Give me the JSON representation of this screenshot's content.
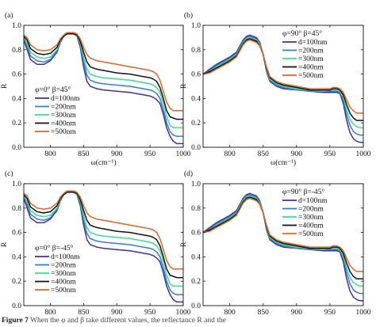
{
  "chart_data": [
    {
      "type": "line",
      "panel_label": "(a)",
      "legend_title": "φ=0° β=45°",
      "legend_placement": "bottom-left",
      "xlabel": "ω(cm⁻¹)",
      "ylabel": "R",
      "xlim": [
        760,
        1000
      ],
      "ylim": [
        0.0,
        1.0
      ],
      "x_ticks": [
        "800",
        "850",
        "900",
        "950",
        "1000"
      ],
      "y_ticks": [
        "0.0",
        "0.2",
        "0.4",
        "0.6",
        "0.8",
        "1.0"
      ],
      "x": [
        760,
        765,
        770,
        780,
        790,
        800,
        810,
        815,
        820,
        825,
        830,
        835,
        840,
        845,
        850,
        855,
        860,
        870,
        880,
        900,
        920,
        940,
        950,
        955,
        960,
        965,
        970,
        975,
        980,
        985,
        990,
        995,
        1000
      ],
      "series": [
        {
          "name": "d=100nm",
          "color": "#4b2a9a",
          "values": [
            0.88,
            0.8,
            0.72,
            0.68,
            0.68,
            0.71,
            0.78,
            0.86,
            0.91,
            0.93,
            0.93,
            0.93,
            0.91,
            0.82,
            0.66,
            0.54,
            0.5,
            0.48,
            0.47,
            0.46,
            0.45,
            0.43,
            0.42,
            0.41,
            0.39,
            0.36,
            0.27,
            0.16,
            0.09,
            0.05,
            0.03,
            0.03,
            0.03
          ]
        },
        {
          "name": "=200nm",
          "color": "#2d7fd6",
          "values": [
            0.89,
            0.83,
            0.75,
            0.71,
            0.7,
            0.72,
            0.79,
            0.87,
            0.91,
            0.93,
            0.93,
            0.93,
            0.91,
            0.84,
            0.7,
            0.59,
            0.55,
            0.53,
            0.52,
            0.51,
            0.5,
            0.48,
            0.47,
            0.46,
            0.44,
            0.4,
            0.31,
            0.2,
            0.13,
            0.1,
            0.09,
            0.09,
            0.09
          ]
        },
        {
          "name": "=300nm",
          "color": "#3ddc8f",
          "values": [
            0.9,
            0.86,
            0.78,
            0.74,
            0.73,
            0.74,
            0.8,
            0.87,
            0.91,
            0.93,
            0.93,
            0.93,
            0.91,
            0.86,
            0.74,
            0.64,
            0.6,
            0.58,
            0.57,
            0.56,
            0.55,
            0.53,
            0.52,
            0.51,
            0.49,
            0.45,
            0.36,
            0.25,
            0.18,
            0.16,
            0.16,
            0.16,
            0.16
          ]
        },
        {
          "name": "=400nm",
          "color": "#111111",
          "values": [
            0.91,
            0.88,
            0.81,
            0.77,
            0.76,
            0.77,
            0.82,
            0.88,
            0.91,
            0.93,
            0.93,
            0.93,
            0.92,
            0.87,
            0.78,
            0.7,
            0.66,
            0.64,
            0.63,
            0.61,
            0.6,
            0.58,
            0.57,
            0.56,
            0.54,
            0.49,
            0.4,
            0.3,
            0.25,
            0.24,
            0.23,
            0.23,
            0.23
          ]
        },
        {
          "name": "=500nm",
          "color": "#e0642a",
          "values": [
            0.92,
            0.9,
            0.84,
            0.8,
            0.79,
            0.8,
            0.84,
            0.89,
            0.92,
            0.94,
            0.94,
            0.94,
            0.93,
            0.89,
            0.82,
            0.76,
            0.73,
            0.71,
            0.7,
            0.68,
            0.66,
            0.64,
            0.63,
            0.62,
            0.6,
            0.55,
            0.46,
            0.37,
            0.32,
            0.3,
            0.3,
            0.3,
            0.3
          ]
        }
      ]
    },
    {
      "type": "line",
      "panel_label": "(b)",
      "legend_title": "φ=90° β=45°",
      "legend_placement": "top-right",
      "xlabel": "ω(cm⁻¹)",
      "ylabel": "R",
      "xlim": [
        760,
        1000
      ],
      "ylim": [
        0.0,
        1.0
      ],
      "x_ticks": [
        "800",
        "850",
        "900",
        "950",
        "1000"
      ],
      "y_ticks": [
        "0.0",
        "0.2",
        "0.4",
        "0.6",
        "0.8",
        "1.0"
      ],
      "x": [
        760,
        770,
        780,
        790,
        800,
        810,
        815,
        820,
        825,
        830,
        835,
        840,
        845,
        850,
        855,
        860,
        870,
        880,
        900,
        920,
        940,
        950,
        955,
        960,
        965,
        970,
        975,
        980,
        985,
        990,
        995,
        1000
      ],
      "series": [
        {
          "name": "d=100nm",
          "color": "#4b2a9a",
          "values": [
            0.6,
            0.64,
            0.68,
            0.71,
            0.74,
            0.78,
            0.83,
            0.88,
            0.91,
            0.92,
            0.91,
            0.9,
            0.86,
            0.76,
            0.62,
            0.54,
            0.5,
            0.48,
            0.47,
            0.46,
            0.45,
            0.45,
            0.45,
            0.45,
            0.44,
            0.36,
            0.22,
            0.12,
            0.07,
            0.05,
            0.04,
            0.04
          ]
        },
        {
          "name": "=200nm",
          "color": "#2d7fd6",
          "values": [
            0.6,
            0.63,
            0.67,
            0.7,
            0.73,
            0.77,
            0.82,
            0.87,
            0.9,
            0.91,
            0.9,
            0.89,
            0.85,
            0.76,
            0.63,
            0.55,
            0.51,
            0.49,
            0.47,
            0.46,
            0.46,
            0.46,
            0.46,
            0.46,
            0.45,
            0.39,
            0.27,
            0.18,
            0.13,
            0.11,
            0.1,
            0.1
          ]
        },
        {
          "name": "=300nm",
          "color": "#3ddc8f",
          "values": [
            0.6,
            0.62,
            0.66,
            0.69,
            0.72,
            0.76,
            0.81,
            0.86,
            0.89,
            0.9,
            0.89,
            0.88,
            0.84,
            0.76,
            0.64,
            0.56,
            0.52,
            0.5,
            0.48,
            0.47,
            0.46,
            0.47,
            0.47,
            0.47,
            0.46,
            0.41,
            0.31,
            0.23,
            0.19,
            0.17,
            0.16,
            0.16
          ]
        },
        {
          "name": "=400nm",
          "color": "#111111",
          "values": [
            0.6,
            0.62,
            0.65,
            0.68,
            0.71,
            0.75,
            0.8,
            0.85,
            0.88,
            0.89,
            0.88,
            0.87,
            0.83,
            0.76,
            0.65,
            0.57,
            0.53,
            0.51,
            0.49,
            0.47,
            0.47,
            0.47,
            0.48,
            0.48,
            0.47,
            0.43,
            0.35,
            0.28,
            0.24,
            0.22,
            0.22,
            0.22
          ]
        },
        {
          "name": "=500nm",
          "color": "#e0642a",
          "values": [
            0.6,
            0.61,
            0.64,
            0.67,
            0.7,
            0.74,
            0.79,
            0.84,
            0.87,
            0.88,
            0.87,
            0.86,
            0.83,
            0.76,
            0.66,
            0.58,
            0.54,
            0.52,
            0.5,
            0.48,
            0.48,
            0.48,
            0.49,
            0.49,
            0.48,
            0.45,
            0.39,
            0.33,
            0.3,
            0.28,
            0.28,
            0.28
          ]
        }
      ]
    },
    {
      "type": "line",
      "panel_label": "(c)",
      "legend_title": "φ=0° β=-45°",
      "legend_placement": "bottom-left",
      "xlabel": "ω(cm⁻¹)",
      "ylabel": "R",
      "xlim": [
        760,
        1000
      ],
      "ylim": [
        0.0,
        1.0
      ],
      "x_ticks": [
        "800",
        "850",
        "900",
        "950",
        "1000"
      ],
      "y_ticks": [
        "0.0",
        "0.2",
        "0.4",
        "0.6",
        "0.8",
        "1.0"
      ],
      "x": [
        760,
        765,
        770,
        780,
        790,
        800,
        810,
        815,
        820,
        825,
        830,
        835,
        840,
        845,
        850,
        855,
        860,
        870,
        880,
        900,
        920,
        940,
        950,
        955,
        960,
        965,
        970,
        975,
        980,
        985,
        990,
        995,
        1000
      ],
      "series": [
        {
          "name": "d=100nm",
          "color": "#4b2a9a",
          "values": [
            0.88,
            0.8,
            0.72,
            0.68,
            0.68,
            0.71,
            0.78,
            0.86,
            0.91,
            0.93,
            0.93,
            0.93,
            0.91,
            0.82,
            0.66,
            0.54,
            0.5,
            0.48,
            0.47,
            0.46,
            0.45,
            0.43,
            0.42,
            0.41,
            0.39,
            0.36,
            0.27,
            0.16,
            0.09,
            0.05,
            0.03,
            0.03,
            0.03
          ]
        },
        {
          "name": "=200nm",
          "color": "#2d7fd6",
          "values": [
            0.89,
            0.83,
            0.75,
            0.71,
            0.7,
            0.72,
            0.79,
            0.87,
            0.91,
            0.93,
            0.93,
            0.93,
            0.91,
            0.84,
            0.7,
            0.59,
            0.55,
            0.53,
            0.52,
            0.51,
            0.5,
            0.48,
            0.47,
            0.46,
            0.44,
            0.4,
            0.31,
            0.2,
            0.13,
            0.1,
            0.09,
            0.09,
            0.09
          ]
        },
        {
          "name": "=300nm",
          "color": "#3ddc8f",
          "values": [
            0.9,
            0.86,
            0.78,
            0.74,
            0.73,
            0.74,
            0.8,
            0.87,
            0.91,
            0.93,
            0.93,
            0.93,
            0.91,
            0.86,
            0.74,
            0.64,
            0.6,
            0.58,
            0.57,
            0.56,
            0.55,
            0.53,
            0.52,
            0.51,
            0.49,
            0.45,
            0.36,
            0.25,
            0.18,
            0.16,
            0.16,
            0.16,
            0.16
          ]
        },
        {
          "name": "=400nm",
          "color": "#111111",
          "values": [
            0.91,
            0.88,
            0.81,
            0.77,
            0.76,
            0.77,
            0.82,
            0.88,
            0.91,
            0.93,
            0.93,
            0.93,
            0.92,
            0.87,
            0.78,
            0.7,
            0.66,
            0.64,
            0.63,
            0.61,
            0.6,
            0.58,
            0.57,
            0.56,
            0.54,
            0.49,
            0.4,
            0.3,
            0.25,
            0.24,
            0.23,
            0.23,
            0.23
          ]
        },
        {
          "name": "=500nm",
          "color": "#e0642a",
          "values": [
            0.92,
            0.9,
            0.84,
            0.8,
            0.79,
            0.8,
            0.84,
            0.89,
            0.92,
            0.94,
            0.94,
            0.94,
            0.93,
            0.89,
            0.82,
            0.76,
            0.73,
            0.71,
            0.7,
            0.68,
            0.66,
            0.64,
            0.63,
            0.62,
            0.6,
            0.55,
            0.46,
            0.37,
            0.32,
            0.3,
            0.3,
            0.3,
            0.3
          ]
        }
      ]
    },
    {
      "type": "line",
      "panel_label": "(d)",
      "legend_title": "φ=90° β=-45°",
      "legend_placement": "top-right",
      "xlabel": "ω(cm⁻¹)",
      "ylabel": "R",
      "xlim": [
        760,
        1000
      ],
      "ylim": [
        0.0,
        1.0
      ],
      "x_ticks": [
        "800",
        "850",
        "900",
        "950",
        "1000"
      ],
      "y_ticks": [
        "0.0",
        "0.2",
        "0.4",
        "0.6",
        "0.8",
        "1.0"
      ],
      "x": [
        760,
        770,
        780,
        790,
        800,
        810,
        815,
        820,
        825,
        830,
        835,
        840,
        845,
        850,
        855,
        860,
        870,
        880,
        900,
        920,
        940,
        950,
        955,
        960,
        965,
        970,
        975,
        980,
        985,
        990,
        995,
        1000
      ],
      "series": [
        {
          "name": "d=100nm",
          "color": "#4b2a9a",
          "values": [
            0.6,
            0.64,
            0.68,
            0.71,
            0.74,
            0.78,
            0.83,
            0.88,
            0.91,
            0.92,
            0.91,
            0.9,
            0.86,
            0.76,
            0.62,
            0.54,
            0.5,
            0.48,
            0.47,
            0.46,
            0.45,
            0.45,
            0.45,
            0.45,
            0.44,
            0.36,
            0.22,
            0.12,
            0.07,
            0.05,
            0.04,
            0.04
          ]
        },
        {
          "name": "=200nm",
          "color": "#2d7fd6",
          "values": [
            0.6,
            0.63,
            0.67,
            0.7,
            0.73,
            0.77,
            0.82,
            0.87,
            0.9,
            0.91,
            0.9,
            0.89,
            0.85,
            0.76,
            0.63,
            0.55,
            0.51,
            0.49,
            0.47,
            0.46,
            0.46,
            0.46,
            0.46,
            0.46,
            0.45,
            0.39,
            0.27,
            0.18,
            0.13,
            0.11,
            0.1,
            0.1
          ]
        },
        {
          "name": "=300nm",
          "color": "#3ddc8f",
          "values": [
            0.6,
            0.62,
            0.66,
            0.69,
            0.72,
            0.76,
            0.81,
            0.86,
            0.89,
            0.9,
            0.89,
            0.88,
            0.84,
            0.76,
            0.64,
            0.56,
            0.52,
            0.5,
            0.48,
            0.47,
            0.46,
            0.47,
            0.47,
            0.47,
            0.46,
            0.41,
            0.31,
            0.23,
            0.19,
            0.17,
            0.16,
            0.16
          ]
        },
        {
          "name": "=400nm",
          "color": "#111111",
          "values": [
            0.6,
            0.62,
            0.65,
            0.68,
            0.71,
            0.75,
            0.8,
            0.85,
            0.88,
            0.89,
            0.88,
            0.87,
            0.83,
            0.76,
            0.65,
            0.57,
            0.53,
            0.51,
            0.49,
            0.47,
            0.47,
            0.47,
            0.48,
            0.48,
            0.47,
            0.43,
            0.35,
            0.28,
            0.24,
            0.22,
            0.22,
            0.22
          ]
        },
        {
          "name": "=500nm",
          "color": "#e0642a",
          "values": [
            0.6,
            0.61,
            0.64,
            0.67,
            0.7,
            0.74,
            0.79,
            0.84,
            0.87,
            0.88,
            0.87,
            0.86,
            0.83,
            0.76,
            0.66,
            0.58,
            0.54,
            0.52,
            0.5,
            0.48,
            0.48,
            0.48,
            0.49,
            0.49,
            0.48,
            0.45,
            0.39,
            0.33,
            0.3,
            0.28,
            0.28,
            0.28
          ]
        }
      ]
    }
  ],
  "caption": {
    "label": "Figure 7",
    "text": " When the φ and β take different values, the reflectance R and the"
  }
}
